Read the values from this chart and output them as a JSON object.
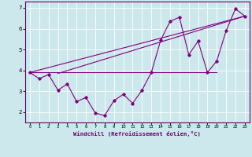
{
  "xlabel": "Windchill (Refroidissement éolien,°C)",
  "bg_color": "#cce8ec",
  "line_color": "#800080",
  "xlim": [
    -0.5,
    23.5
  ],
  "ylim": [
    1.5,
    7.3
  ],
  "xticks": [
    0,
    1,
    2,
    3,
    4,
    5,
    6,
    7,
    8,
    9,
    10,
    11,
    12,
    13,
    14,
    15,
    16,
    17,
    18,
    19,
    20,
    21,
    22,
    23
  ],
  "yticks": [
    2,
    3,
    4,
    5,
    6,
    7
  ],
  "line1_x": [
    0,
    20
  ],
  "line1_y": [
    3.9,
    3.9
  ],
  "line2_x": [
    0,
    1,
    2,
    3,
    4,
    5,
    6,
    7,
    8,
    9,
    10,
    11,
    12,
    13,
    14,
    15,
    16,
    17,
    18,
    19,
    20,
    21,
    22,
    23
  ],
  "line2_y": [
    3.9,
    3.6,
    3.8,
    3.05,
    3.35,
    2.5,
    2.7,
    1.95,
    1.83,
    2.55,
    2.85,
    2.42,
    3.05,
    3.9,
    5.45,
    6.35,
    6.55,
    4.75,
    5.4,
    3.9,
    4.45,
    5.9,
    6.95,
    6.6
  ],
  "line3_x": [
    0,
    23
  ],
  "line3_y": [
    3.9,
    6.6
  ],
  "line4_x": [
    3,
    23
  ],
  "line4_y": [
    3.85,
    6.6
  ]
}
